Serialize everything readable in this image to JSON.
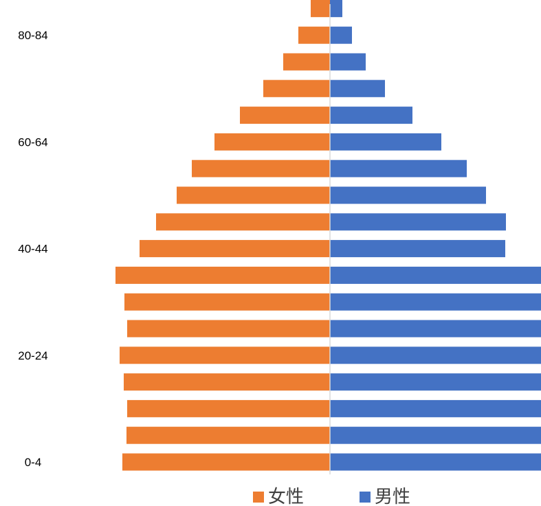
{
  "chart_data": {
    "type": "bar",
    "orientation": "horizontal",
    "layout": "population-pyramid",
    "categories": [
      "0-4",
      "5-9",
      "10-14",
      "15-19",
      "20-24",
      "25-29",
      "30-34",
      "35-39",
      "40-44",
      "45-49",
      "50-54",
      "55-59",
      "60-64",
      "65-69",
      "70-74",
      "75-79",
      "80-84",
      "85+"
    ],
    "tick_labels": [
      "0-4",
      "",
      "",
      "",
      "20-24",
      "",
      "",
      "",
      "40-44",
      "",
      "",
      "",
      "60-64",
      "",
      "",
      "",
      "80-84",
      ""
    ],
    "series": [
      {
        "name": "女性",
        "color": "#ED7D31",
        "side": "left",
        "values": [
          302,
          296,
          295,
          300,
          306,
          295,
          299,
          312,
          277,
          253,
          223,
          201,
          168,
          131,
          97,
          68,
          46,
          28
        ]
      },
      {
        "name": "男性",
        "color": "#4472C4",
        "side": "right",
        "values": [
          320,
          320,
          320,
          320,
          320,
          320,
          320,
          320,
          255,
          256,
          227,
          199,
          162,
          120,
          80,
          52,
          32,
          18
        ]
      }
    ],
    "xlim": [
      -320,
      320
    ],
    "grid": false,
    "legend": "bottom",
    "center_line_color": "#D9D9D9"
  }
}
